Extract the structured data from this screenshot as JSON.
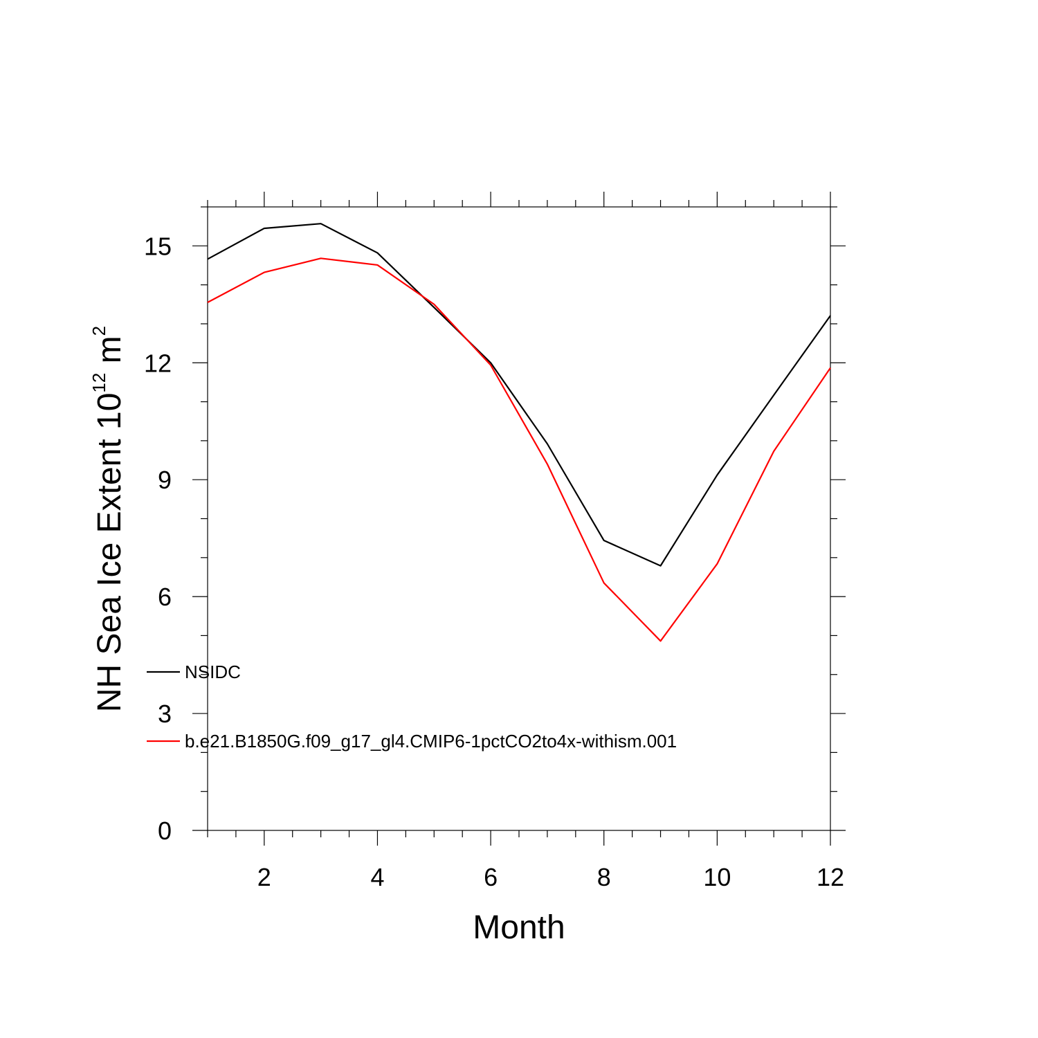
{
  "chart_data": {
    "type": "line",
    "xlabel": "Month",
    "ylabel_main": "NH Sea Ice Extent 10",
    "ylabel_sup": "12",
    "ylabel_unit": " m",
    "ylabel_unit_sup": "2",
    "xlim": [
      1,
      12
    ],
    "ylim": [
      0,
      16
    ],
    "xticks": [
      2,
      4,
      6,
      8,
      10,
      12
    ],
    "xtick_labels": [
      "2",
      "4",
      "6",
      "8",
      "10",
      "12"
    ],
    "yticks": [
      0,
      3,
      6,
      9,
      12,
      15
    ],
    "ytick_labels": [
      "0",
      "3",
      "6",
      "9",
      "12",
      "15"
    ],
    "x": [
      1,
      2,
      3,
      4,
      5,
      6,
      7,
      8,
      9,
      10,
      11,
      12
    ],
    "grid": false,
    "legend_position": "left",
    "series": [
      {
        "name": "NSIDC",
        "color": "#000000",
        "values": [
          14.66,
          15.45,
          15.57,
          14.82,
          13.42,
          12.0,
          9.92,
          7.44,
          6.79,
          9.12,
          11.17,
          13.21
        ]
      },
      {
        "name": "b.e21.B1850G.f09_g17_gl4.CMIP6-1pctCO2to4x-withism.001",
        "color": "#ff0000",
        "values": [
          13.55,
          14.32,
          14.68,
          14.51,
          13.5,
          11.94,
          9.4,
          6.35,
          4.86,
          6.84,
          9.73,
          11.87
        ]
      }
    ]
  }
}
